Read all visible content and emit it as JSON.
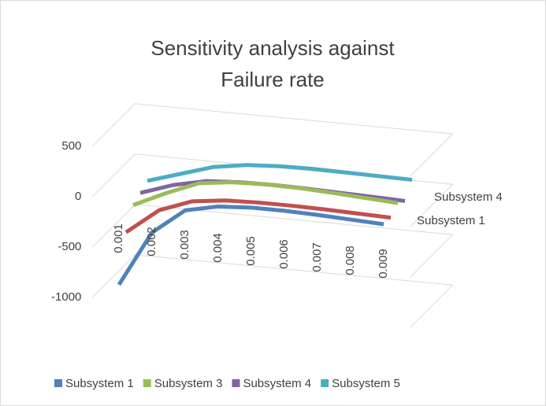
{
  "chart_data": {
    "type": "line3d",
    "title": "Sensitivity analysis against Failure rate",
    "categories": [
      "0.001",
      "0.002",
      "0.003",
      "0.004",
      "0.005",
      "0.006",
      "0.007",
      "0.008",
      "0.009"
    ],
    "series": [
      {
        "name": "Subsystem 1",
        "color": "#4f81bd",
        "values": [
          -850,
          -300,
          -50,
          20,
          40,
          40,
          30,
          15,
          0
        ]
      },
      {
        "color": "#c0504d",
        "values": [
          -400,
          -150,
          -30,
          10,
          20,
          20,
          15,
          5,
          -5
        ]
      },
      {
        "name": "Subsystem 3",
        "color": "#9bbb59",
        "values": [
          -200,
          -50,
          80,
          120,
          130,
          125,
          110,
          90,
          70
        ]
      },
      {
        "name": "Subsystem 4",
        "color": "#8064a2",
        "values": [
          -150,
          -40,
          30,
          50,
          55,
          50,
          40,
          30,
          20
        ]
      },
      {
        "name": "Subsystem 5",
        "color": "#4bacc6",
        "values": [
          -100,
          0,
          100,
          150,
          170,
          175,
          170,
          165,
          160
        ]
      }
    ],
    "ylim": [
      -1000,
      500
    ],
    "yticks": [
      -1000,
      -500,
      0,
      500
    ],
    "grid": true
  }
}
